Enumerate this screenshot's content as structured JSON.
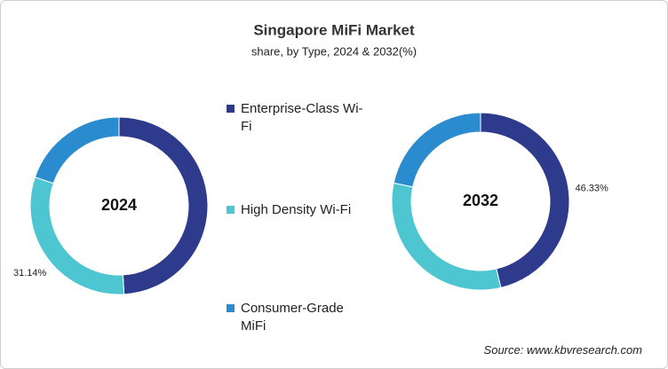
{
  "title": "Singapore MiFi Market",
  "subtitle": "share, by Type, 2024 & 2032(%)",
  "source": "Source: www.kbvresearch.com",
  "chart_data": [
    {
      "type": "donut",
      "center_label": "2024",
      "categories": [
        "Enterprise-Class Wi-Fi",
        "High Density Wi-Fi",
        "Consumer-Grade MiFi"
      ],
      "values": [
        49.1,
        31.14,
        19.76
      ],
      "value_labels": [
        null,
        "31.14%",
        null
      ],
      "colors": [
        "#2e3a8c",
        "#4dc6d1",
        "#2a8ccf"
      ]
    },
    {
      "type": "donut",
      "center_label": "2032",
      "categories": [
        "Enterprise-Class Wi-Fi",
        "High Density Wi-Fi",
        "Consumer-Grade MiFi"
      ],
      "values": [
        46.33,
        32.0,
        21.67
      ],
      "value_labels": [
        "46.33%",
        null,
        null
      ],
      "colors": [
        "#2e3a8c",
        "#4dc6d1",
        "#2a8ccf"
      ]
    }
  ]
}
